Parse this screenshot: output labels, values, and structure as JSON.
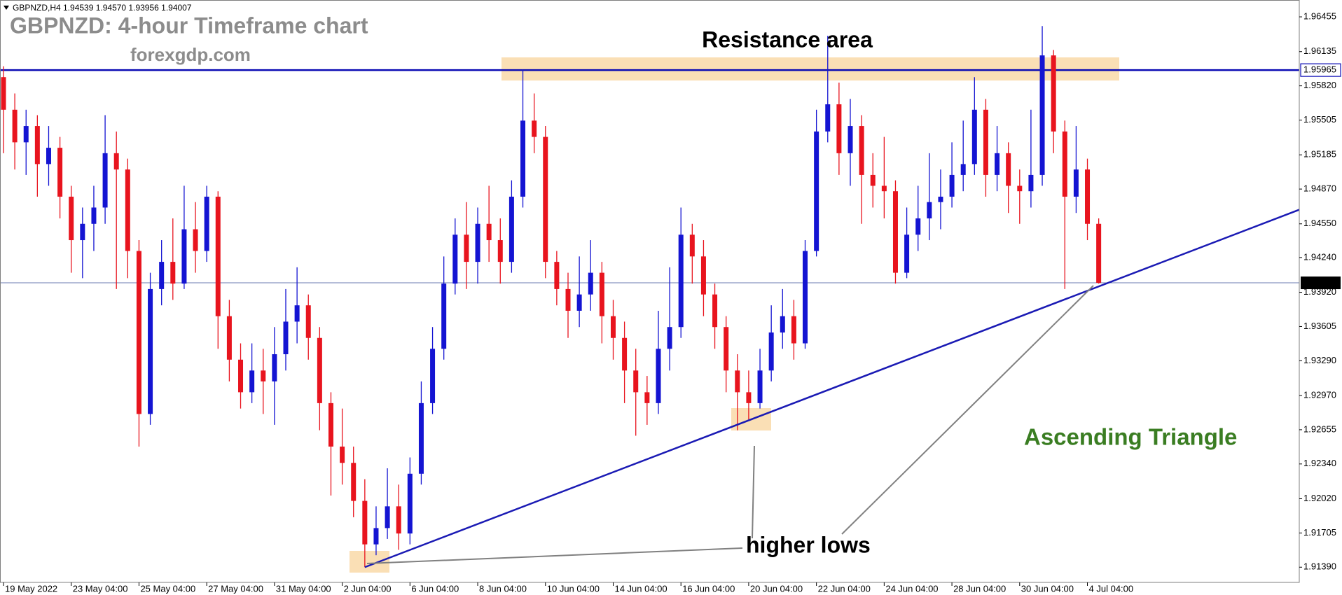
{
  "chart_data": {
    "type": "candlestick",
    "info": "GBPNZD,H4 1.94539 1.94570 1.93956 1.94007",
    "title": "GBPNZD: 4-hour Timeframe chart",
    "subtitle": "forexgdp.com",
    "annotations": {
      "resistance": "Resistance area",
      "lows": "higher lows",
      "pattern": "Ascending Triangle"
    },
    "categories": [
      "19 May 2022",
      null,
      null,
      null,
      null,
      null,
      "23 May 04:00",
      null,
      null,
      null,
      null,
      null,
      "25 May 04:00",
      null,
      null,
      null,
      null,
      null,
      "27 May 04:00",
      null,
      null,
      null,
      null,
      null,
      "31 May 04:00",
      null,
      null,
      null,
      null,
      null,
      "2 Jun 04:00",
      null,
      null,
      null,
      null,
      null,
      "6 Jun 04:00",
      null,
      null,
      null,
      null,
      null,
      "8 Jun 04:00",
      null,
      null,
      null,
      null,
      null,
      "10 Jun 04:00",
      null,
      null,
      null,
      null,
      null,
      "14 Jun 04:00",
      null,
      null,
      null,
      null,
      null,
      "16 Jun 04:00",
      null,
      null,
      null,
      null,
      null,
      "20 Jun 04:00",
      null,
      null,
      null,
      null,
      null,
      "22 Jun 04:00",
      null,
      null,
      null,
      null,
      null,
      "24 Jun 04:00",
      null,
      null,
      null,
      null,
      null,
      "28 Jun 04:00",
      null,
      null,
      null,
      null,
      null,
      "30 Jun 04:00",
      null,
      null,
      null,
      null,
      null,
      "4 Jul 04:00",
      null
    ],
    "open": [
      1.959,
      1.956,
      1.953,
      1.9545,
      1.951,
      1.9525,
      1.948,
      1.944,
      1.9455,
      1.947,
      1.952,
      1.9505,
      1.943,
      1.928,
      1.9395,
      1.942,
      1.94,
      1.945,
      1.943,
      1.948,
      1.937,
      1.933,
      1.93,
      1.932,
      1.931,
      1.9335,
      1.9365,
      1.938,
      1.935,
      1.929,
      1.925,
      1.9235,
      1.92,
      1.916,
      1.9175,
      1.9195,
      1.917,
      1.9225,
      1.929,
      1.934,
      1.94,
      1.9445,
      1.942,
      1.9455,
      1.944,
      1.942,
      1.948,
      1.955,
      1.9535,
      1.942,
      1.9395,
      1.9375,
      1.939,
      1.941,
      1.937,
      1.935,
      1.932,
      1.93,
      1.929,
      1.934,
      1.936,
      1.9445,
      1.9425,
      1.939,
      1.936,
      1.932,
      1.93,
      1.929,
      1.932,
      1.9355,
      1.937,
      1.9345,
      1.943,
      1.954,
      1.9565,
      1.952,
      1.9545,
      1.95,
      1.949,
      1.9485,
      1.941,
      1.9445,
      1.946,
      1.9475,
      1.948,
      1.95,
      1.951,
      1.956,
      1.95,
      1.952,
      1.949,
      1.9485,
      1.95,
      1.961,
      1.954,
      1.948,
      1.9505,
      1.9455
    ],
    "high": [
      1.96,
      1.9575,
      1.956,
      1.9555,
      1.9545,
      1.9535,
      1.949,
      1.947,
      1.949,
      1.9555,
      1.954,
      1.9515,
      1.944,
      1.941,
      1.944,
      1.946,
      1.949,
      1.9475,
      1.949,
      1.9485,
      1.9385,
      1.9345,
      1.9345,
      1.934,
      1.936,
      1.9395,
      1.9415,
      1.939,
      1.936,
      1.93,
      1.9285,
      1.925,
      1.922,
      1.9195,
      1.923,
      1.9215,
      1.924,
      1.931,
      1.936,
      1.9425,
      1.946,
      1.9475,
      1.947,
      1.949,
      1.946,
      1.9495,
      1.9597,
      1.9575,
      1.9545,
      1.943,
      1.941,
      1.9425,
      1.944,
      1.942,
      1.9385,
      1.9365,
      1.934,
      1.9315,
      1.9375,
      1.9415,
      1.947,
      1.9455,
      1.944,
      1.94,
      1.937,
      1.9335,
      1.932,
      1.934,
      1.938,
      1.9395,
      1.9385,
      1.944,
      1.956,
      1.9628,
      1.9585,
      1.957,
      1.9555,
      1.952,
      1.9535,
      1.9495,
      1.947,
      1.949,
      1.952,
      1.9505,
      1.953,
      1.955,
      1.959,
      1.957,
      1.9545,
      1.953,
      1.9505,
      1.956,
      1.9637,
      1.9615,
      1.955,
      1.9545,
      1.9515,
      1.946
    ],
    "low": [
      1.952,
      1.9505,
      1.95,
      1.948,
      1.949,
      1.946,
      1.941,
      1.9405,
      1.943,
      1.9455,
      1.9395,
      1.9405,
      1.925,
      1.927,
      1.938,
      1.9385,
      1.9395,
      1.941,
      1.942,
      1.934,
      1.931,
      1.9285,
      1.929,
      1.928,
      1.927,
      1.932,
      1.9345,
      1.933,
      1.9265,
      1.9205,
      1.9215,
      1.9185,
      1.9139,
      1.915,
      1.9165,
      1.9155,
      1.916,
      1.9215,
      1.928,
      1.933,
      1.939,
      1.9395,
      1.94,
      1.942,
      1.94,
      1.941,
      1.947,
      1.952,
      1.9405,
      1.938,
      1.935,
      1.936,
      1.9375,
      1.9345,
      1.933,
      1.929,
      1.926,
      1.927,
      1.928,
      1.932,
      1.935,
      1.94,
      1.937,
      1.934,
      1.93,
      1.9265,
      1.9275,
      1.9285,
      1.931,
      1.934,
      1.933,
      1.934,
      1.9425,
      1.953,
      1.95,
      1.949,
      1.9455,
      1.947,
      1.946,
      1.94,
      1.9405,
      1.943,
      1.944,
      1.945,
      1.947,
      1.9485,
      1.95,
      1.948,
      1.9485,
      1.9465,
      1.9455,
      1.947,
      1.949,
      1.952,
      1.9395,
      1.9465,
      1.944,
      1.94
    ],
    "close": [
      1.956,
      1.953,
      1.9545,
      1.951,
      1.9525,
      1.948,
      1.944,
      1.9455,
      1.947,
      1.952,
      1.9505,
      1.943,
      1.928,
      1.9395,
      1.942,
      1.94,
      1.945,
      1.943,
      1.948,
      1.937,
      1.933,
      1.93,
      1.932,
      1.931,
      1.9335,
      1.9365,
      1.938,
      1.935,
      1.929,
      1.925,
      1.9235,
      1.92,
      1.916,
      1.9175,
      1.9195,
      1.917,
      1.9225,
      1.929,
      1.934,
      1.94,
      1.9445,
      1.942,
      1.9455,
      1.944,
      1.942,
      1.948,
      1.955,
      1.9535,
      1.942,
      1.9395,
      1.9375,
      1.939,
      1.941,
      1.937,
      1.935,
      1.932,
      1.93,
      1.929,
      1.934,
      1.936,
      1.9445,
      1.9425,
      1.939,
      1.936,
      1.932,
      1.93,
      1.929,
      1.932,
      1.9355,
      1.937,
      1.9345,
      1.943,
      1.954,
      1.9565,
      1.952,
      1.9545,
      1.95,
      1.949,
      1.9485,
      1.941,
      1.9445,
      1.946,
      1.9475,
      1.948,
      1.95,
      1.951,
      1.956,
      1.95,
      1.952,
      1.949,
      1.9485,
      1.95,
      1.961,
      1.954,
      1.948,
      1.9505,
      1.9455,
      1.94007
    ],
    "up_color": "#1414d2",
    "down_color": "#e8141e",
    "ylim": [
      1.9125,
      1.9661
    ],
    "yticks": [
      1.96455,
      1.96135,
      {
        "value": 1.9582,
        "label": "1.95820"
      },
      1.95505,
      1.95185,
      {
        "value": 1.9487,
        "label": "1.94870"
      },
      {
        "value": 1.9455,
        "label": "1.94550"
      },
      {
        "value": 1.9424,
        "label": "1.94240"
      },
      {
        "value": 1.9392,
        "label": "1.93920"
      },
      1.93605,
      {
        "value": 1.9329,
        "label": "1.93290"
      },
      {
        "value": 1.9297,
        "label": "1.92970"
      },
      1.92655,
      {
        "value": 1.9234,
        "label": "1.92340"
      },
      {
        "value": 1.9202,
        "label": "1.92020"
      },
      1.91705,
      {
        "value": 1.9139,
        "label": "1.91390"
      }
    ],
    "resistance_level": 1.95965,
    "resistance_color": "#0a0ab4",
    "last_price": 1.94007,
    "trendline": {
      "x": [
        32,
        115
      ],
      "y": [
        1.9139,
        1.9468
      ],
      "color": "#1a1ab4"
    }
  }
}
